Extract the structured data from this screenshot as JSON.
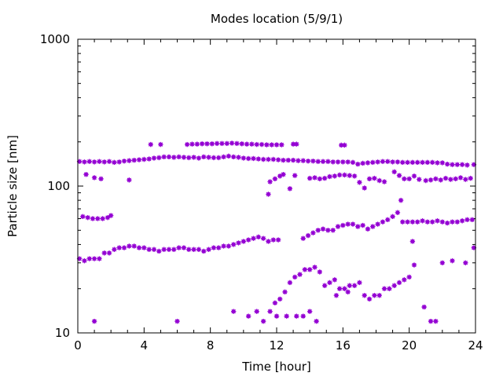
{
  "chart_data": {
    "type": "scatter",
    "title": "Modes location (5/9/1)",
    "xlabel": "Time [hour]",
    "ylabel": "Particle size [nm]",
    "xlim": [
      0,
      24
    ],
    "ylim": [
      10,
      1000
    ],
    "y_scale": "log",
    "grid": false,
    "marker_color": "#9400d3",
    "x_ticks": [
      0,
      4,
      8,
      12,
      16,
      20,
      24
    ],
    "x_tick_labels": [
      "0",
      "4",
      "8",
      "12",
      "16",
      "20",
      "24"
    ],
    "y_ticks": [
      10,
      100,
      1000
    ],
    "y_tick_labels": [
      "10",
      "100",
      "1000"
    ],
    "series": [
      {
        "points": [
          [
            0.1,
            147
          ],
          [
            0.4,
            146
          ],
          [
            0.7,
            147
          ],
          [
            1.0,
            146
          ],
          [
            1.3,
            147
          ],
          [
            1.6,
            146
          ],
          [
            1.9,
            147
          ],
          [
            2.2,
            145
          ],
          [
            2.5,
            146
          ],
          [
            2.8,
            148
          ],
          [
            3.1,
            149
          ],
          [
            3.4,
            150
          ],
          [
            3.7,
            151
          ],
          [
            4.0,
            152
          ],
          [
            4.3,
            153
          ],
          [
            4.6,
            155
          ],
          [
            4.9,
            156
          ],
          [
            5.2,
            158
          ],
          [
            5.5,
            158
          ],
          [
            5.8,
            157
          ],
          [
            6.1,
            158
          ],
          [
            6.4,
            157
          ],
          [
            6.7,
            156
          ],
          [
            7.0,
            157
          ],
          [
            7.3,
            155
          ],
          [
            7.6,
            158
          ],
          [
            7.9,
            157
          ],
          [
            8.2,
            156
          ],
          [
            8.5,
            156
          ],
          [
            8.8,
            158
          ],
          [
            9.1,
            160
          ],
          [
            9.4,
            158
          ],
          [
            9.7,
            157
          ],
          [
            10.0,
            155
          ],
          [
            10.3,
            154
          ],
          [
            10.6,
            154
          ],
          [
            10.9,
            153
          ],
          [
            11.2,
            152
          ],
          [
            11.5,
            152
          ],
          [
            11.8,
            152
          ],
          [
            12.1,
            151
          ],
          [
            12.4,
            150
          ],
          [
            12.7,
            150
          ],
          [
            13.0,
            150
          ],
          [
            13.3,
            149
          ],
          [
            13.6,
            149
          ],
          [
            13.9,
            148
          ],
          [
            14.2,
            148
          ],
          [
            14.5,
            147
          ],
          [
            14.8,
            147
          ],
          [
            15.1,
            147
          ],
          [
            15.4,
            146
          ],
          [
            15.7,
            146
          ],
          [
            16.0,
            146
          ],
          [
            16.3,
            146
          ],
          [
            16.6,
            145
          ],
          [
            16.9,
            141
          ],
          [
            17.2,
            143
          ],
          [
            17.5,
            144
          ],
          [
            17.8,
            145
          ],
          [
            18.1,
            146
          ],
          [
            18.4,
            147
          ],
          [
            18.7,
            147
          ],
          [
            19.0,
            146
          ],
          [
            19.3,
            146
          ],
          [
            19.6,
            145
          ],
          [
            19.9,
            145
          ],
          [
            20.2,
            145
          ],
          [
            20.5,
            145
          ],
          [
            20.8,
            145
          ],
          [
            21.1,
            145
          ],
          [
            21.4,
            145
          ],
          [
            21.7,
            144
          ],
          [
            22.0,
            144
          ],
          [
            22.3,
            141
          ],
          [
            22.6,
            140
          ],
          [
            22.9,
            140
          ],
          [
            23.2,
            140
          ],
          [
            23.5,
            139
          ],
          [
            23.9,
            140
          ],
          [
            4.4,
            192
          ],
          [
            5.0,
            192
          ],
          [
            6.6,
            192
          ],
          [
            6.9,
            193
          ],
          [
            7.2,
            193
          ],
          [
            7.5,
            194
          ],
          [
            7.8,
            194
          ],
          [
            8.1,
            194
          ],
          [
            8.4,
            195
          ],
          [
            8.7,
            195
          ],
          [
            9.0,
            195
          ],
          [
            9.3,
            196
          ],
          [
            9.6,
            195
          ],
          [
            9.9,
            194
          ],
          [
            10.2,
            193
          ],
          [
            10.5,
            193
          ],
          [
            10.8,
            192
          ],
          [
            11.1,
            192
          ],
          [
            11.4,
            191
          ],
          [
            11.7,
            191
          ],
          [
            12.0,
            191
          ],
          [
            12.3,
            191
          ],
          [
            13.0,
            193
          ],
          [
            13.2,
            193
          ],
          [
            15.9,
            190
          ],
          [
            16.1,
            190
          ],
          [
            0.3,
            62
          ],
          [
            0.6,
            61
          ],
          [
            0.9,
            60
          ],
          [
            1.2,
            60
          ],
          [
            1.5,
            60
          ],
          [
            1.8,
            61
          ],
          [
            2.0,
            63
          ],
          [
            0.1,
            32
          ],
          [
            0.4,
            31
          ],
          [
            0.7,
            32
          ],
          [
            1.0,
            32
          ],
          [
            1.3,
            32
          ],
          [
            1.6,
            35
          ],
          [
            1.9,
            35
          ],
          [
            2.2,
            37
          ],
          [
            2.5,
            38
          ],
          [
            2.8,
            38
          ],
          [
            3.1,
            39
          ],
          [
            3.4,
            39
          ],
          [
            3.7,
            38
          ],
          [
            4.0,
            38
          ],
          [
            4.3,
            37
          ],
          [
            4.6,
            37
          ],
          [
            4.9,
            36
          ],
          [
            5.2,
            37
          ],
          [
            5.5,
            37
          ],
          [
            5.8,
            37
          ],
          [
            6.1,
            38
          ],
          [
            6.4,
            38
          ],
          [
            6.7,
            37
          ],
          [
            7.0,
            37
          ],
          [
            7.3,
            37
          ],
          [
            7.6,
            36
          ],
          [
            7.9,
            37
          ],
          [
            8.2,
            38
          ],
          [
            8.5,
            38
          ],
          [
            8.8,
            39
          ],
          [
            9.1,
            39
          ],
          [
            9.4,
            40
          ],
          [
            9.7,
            41
          ],
          [
            10.0,
            42
          ],
          [
            10.3,
            43
          ],
          [
            10.6,
            44
          ],
          [
            10.9,
            45
          ],
          [
            11.2,
            44
          ],
          [
            11.5,
            42
          ],
          [
            11.8,
            43
          ],
          [
            12.1,
            43
          ],
          [
            13.6,
            44
          ],
          [
            13.9,
            46
          ],
          [
            14.2,
            48
          ],
          [
            14.5,
            50
          ],
          [
            14.8,
            51
          ],
          [
            15.1,
            50
          ],
          [
            15.4,
            50
          ],
          [
            15.7,
            53
          ],
          [
            16.0,
            54
          ],
          [
            16.3,
            55
          ],
          [
            16.6,
            55
          ],
          [
            16.9,
            53
          ],
          [
            17.2,
            54
          ],
          [
            17.5,
            51
          ],
          [
            17.8,
            53
          ],
          [
            18.1,
            55
          ],
          [
            18.4,
            57
          ],
          [
            18.7,
            59
          ],
          [
            19.0,
            62
          ],
          [
            19.3,
            66
          ],
          [
            19.6,
            57
          ],
          [
            19.9,
            57
          ],
          [
            20.2,
            57
          ],
          [
            20.5,
            57
          ],
          [
            20.8,
            58
          ],
          [
            21.1,
            57
          ],
          [
            21.4,
            57
          ],
          [
            21.7,
            58
          ],
          [
            22.0,
            57
          ],
          [
            22.3,
            56
          ],
          [
            22.6,
            57
          ],
          [
            22.9,
            57
          ],
          [
            23.2,
            58
          ],
          [
            23.5,
            59
          ],
          [
            23.8,
            59
          ],
          [
            11.6,
            107
          ],
          [
            11.9,
            112
          ],
          [
            12.2,
            117
          ],
          [
            12.4,
            120
          ],
          [
            11.5,
            88
          ],
          [
            12.8,
            96
          ],
          [
            13.1,
            118
          ],
          [
            14.0,
            113
          ],
          [
            14.3,
            114
          ],
          [
            14.6,
            112
          ],
          [
            14.9,
            113
          ],
          [
            15.2,
            116
          ],
          [
            15.5,
            117
          ],
          [
            15.8,
            119
          ],
          [
            16.1,
            119
          ],
          [
            16.4,
            118
          ],
          [
            16.7,
            117
          ],
          [
            17.0,
            106
          ],
          [
            17.3,
            97
          ],
          [
            17.6,
            112
          ],
          [
            17.9,
            113
          ],
          [
            18.2,
            109
          ],
          [
            18.5,
            107
          ],
          [
            19.1,
            125
          ],
          [
            19.4,
            118
          ],
          [
            19.7,
            112
          ],
          [
            20.0,
            112
          ],
          [
            20.3,
            117
          ],
          [
            20.6,
            111
          ],
          [
            21.0,
            109
          ],
          [
            21.3,
            110
          ],
          [
            21.6,
            112
          ],
          [
            21.9,
            110
          ],
          [
            22.2,
            113
          ],
          [
            22.5,
            111
          ],
          [
            22.8,
            112
          ],
          [
            23.1,
            114
          ],
          [
            23.4,
            111
          ],
          [
            23.7,
            113
          ],
          [
            1.0,
            114
          ],
          [
            1.4,
            112
          ],
          [
            3.1,
            110
          ],
          [
            0.5,
            120
          ],
          [
            12.0,
            13
          ],
          [
            11.6,
            14
          ],
          [
            11.9,
            16
          ],
          [
            12.2,
            17
          ],
          [
            12.5,
            19
          ],
          [
            12.8,
            22
          ],
          [
            13.1,
            24
          ],
          [
            13.4,
            25
          ],
          [
            13.7,
            27
          ],
          [
            14.0,
            27
          ],
          [
            14.3,
            28
          ],
          [
            14.6,
            26
          ],
          [
            14.9,
            21
          ],
          [
            15.2,
            22
          ],
          [
            15.5,
            23
          ],
          [
            15.8,
            20
          ],
          [
            16.1,
            20
          ],
          [
            16.4,
            21
          ],
          [
            16.7,
            21
          ],
          [
            17.0,
            22
          ],
          [
            17.3,
            18
          ],
          [
            17.6,
            17
          ],
          [
            17.9,
            18
          ],
          [
            18.2,
            18
          ],
          [
            18.5,
            20
          ],
          [
            18.8,
            20
          ],
          [
            19.1,
            21
          ],
          [
            19.4,
            22
          ],
          [
            19.7,
            23
          ],
          [
            20.0,
            24
          ],
          [
            20.3,
            29
          ],
          [
            10.8,
            14
          ],
          [
            11.2,
            12
          ],
          [
            9.4,
            14
          ],
          [
            10.3,
            13
          ],
          [
            12.6,
            13
          ],
          [
            13.2,
            13
          ],
          [
            13.6,
            13
          ],
          [
            14.0,
            14
          ],
          [
            14.4,
            12
          ],
          [
            16.3,
            19
          ],
          [
            15.6,
            18
          ],
          [
            1.0,
            12
          ],
          [
            6.0,
            12
          ],
          [
            20.9,
            15
          ],
          [
            21.3,
            12
          ],
          [
            21.6,
            12
          ],
          [
            22.0,
            30
          ],
          [
            22.6,
            31
          ],
          [
            23.4,
            30
          ],
          [
            23.9,
            38
          ],
          [
            20.2,
            42
          ],
          [
            19.5,
            80
          ]
        ]
      }
    ]
  }
}
